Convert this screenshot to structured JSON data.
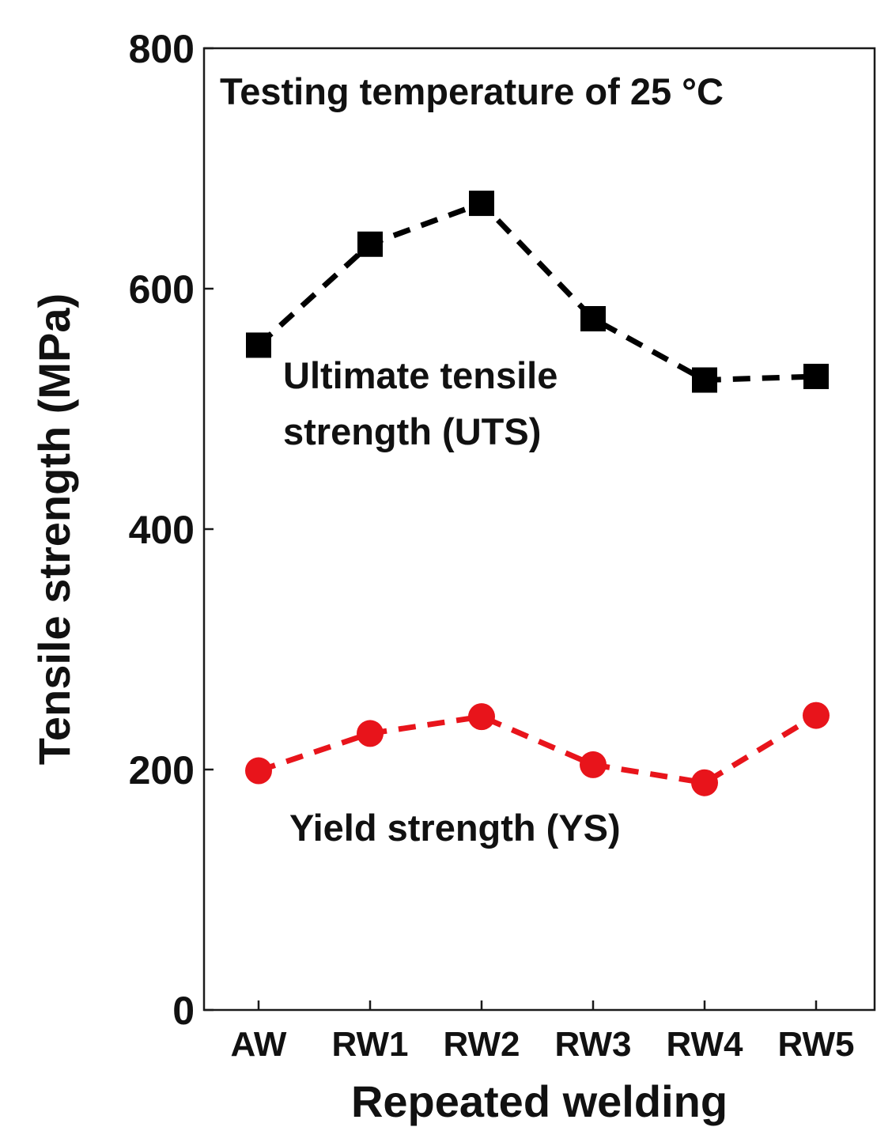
{
  "chart_data": {
    "type": "line",
    "categories": [
      "AW",
      "RW1",
      "RW2",
      "RW3",
      "RW4",
      "RW5"
    ],
    "series": [
      {
        "name": "Ultimate tensile strength (UTS)",
        "label_lines": [
          "Ultimate tensile",
          "strength (UTS)"
        ],
        "marker": "square",
        "color": "#000000",
        "values": [
          553,
          637,
          671,
          575,
          524,
          527
        ]
      },
      {
        "name": "Yield strength (YS)",
        "label_lines": [
          "Yield strength (YS)"
        ],
        "marker": "circle",
        "color": "#e8141b",
        "values": [
          199,
          230,
          244,
          204,
          189,
          245
        ]
      }
    ],
    "annotation": "Testing temperature of 25 °C",
    "xlabel": "Repeated welding",
    "ylabel": "Tensile strength (MPa)",
    "ylim": [
      0,
      800
    ],
    "yticks": [
      0,
      200,
      400,
      600,
      800
    ],
    "grid": false,
    "legend": "none"
  }
}
